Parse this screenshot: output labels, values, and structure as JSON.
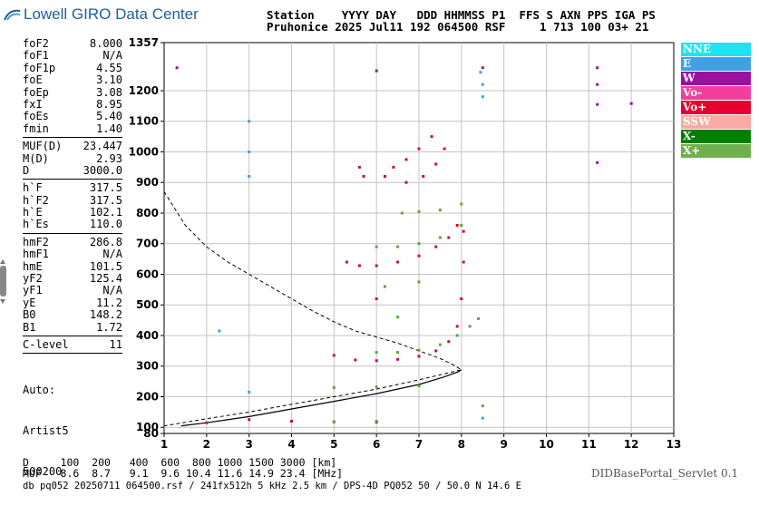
{
  "header": {
    "logo_text": "Lowell GIRO Data Center",
    "line1": "Station    YYYY DAY   DDD HHMMSS P1  FFS S AXN PPS IGA PS",
    "line2": "Pruhonice 2025 Jul11 192 064500 RSF     1 713 100 03+ 21"
  },
  "params": [
    {
      "name": "foF2",
      "value": "8.000"
    },
    {
      "name": "foF1",
      "value": "N/A"
    },
    {
      "name": "foF1p",
      "value": "4.55"
    },
    {
      "name": "foE",
      "value": "3.10"
    },
    {
      "name": "foEp",
      "value": "3.08"
    },
    {
      "name": "fxI",
      "value": "8.95"
    },
    {
      "name": "foEs",
      "value": "5.40"
    },
    {
      "name": "fmin",
      "value": "1.40"
    },
    {
      "name": "MUF(D)",
      "value": "23.447"
    },
    {
      "name": "M(D)",
      "value": "2.93"
    },
    {
      "name": "D",
      "value": "3000.0"
    },
    {
      "name": "h`F",
      "value": "317.5"
    },
    {
      "name": "h`F2",
      "value": "317.5"
    },
    {
      "name": "h`E",
      "value": "102.1"
    },
    {
      "name": "h`Es",
      "value": "110.0"
    },
    {
      "name": "hmF2",
      "value": "286.8"
    },
    {
      "name": "hmF1",
      "value": "N/A"
    },
    {
      "name": "hmE",
      "value": "101.5"
    },
    {
      "name": "yF2",
      "value": "125.4"
    },
    {
      "name": "yF1",
      "value": "N/A"
    },
    {
      "name": "yE",
      "value": "11.2"
    },
    {
      "name": "B0",
      "value": "148.2"
    },
    {
      "name": "B1",
      "value": "1.72"
    },
    {
      "name": "C-level",
      "value": "11"
    }
  ],
  "auto": {
    "line1": "Auto:",
    "line2": "Artist5",
    "line3": "500200"
  },
  "legend": [
    {
      "label": "NNE",
      "color": "#1fe3f0"
    },
    {
      "label": "E",
      "color": "#3fa0e6"
    },
    {
      "label": "W",
      "color": "#9c10a0"
    },
    {
      "label": "Vo-",
      "color": "#f23f9d"
    },
    {
      "label": "Vo+",
      "color": "#e6002f"
    },
    {
      "label": "SSW",
      "color": "#f7aaa6"
    },
    {
      "label": "X-",
      "color": "#007f00"
    },
    {
      "label": "X+",
      "color": "#6fb04f"
    }
  ],
  "footer": {
    "d_row": "D     100  200   400  600  800 1000 1500 3000 [km]",
    "muf_row": "MUF   8.6  8.7   9.1  9.6 10.4 11.6 14.9 23.4 [MHz]",
    "info": "db pq052 20250711 064500.rsf / 241fx512h 5 kHz 2.5 km / DPS-4D PQ052 50 / 50.0 N 14.6 E",
    "servlet": "DIDBasePortal_Servlet 0.1"
  },
  "chart_data": {
    "type": "scatter",
    "xlim": [
      1,
      13
    ],
    "ylim": [
      80,
      1357
    ],
    "x_ticks": [
      "1",
      "2",
      "3",
      "4",
      "5",
      "6",
      "7",
      "8",
      "9",
      "10",
      "11",
      "12",
      "13"
    ],
    "y_ticks": [
      "80",
      "100",
      "200",
      "300",
      "400",
      "500",
      "600",
      "700",
      "800",
      "900",
      "1000",
      "1100",
      "1200",
      "1357"
    ],
    "grid": true,
    "series": [
      {
        "name": "Vo+",
        "color": "#c8103a",
        "points": [
          [
            5.5,
            320
          ],
          [
            6.0,
            318
          ],
          [
            6.5,
            322
          ],
          [
            7.0,
            332
          ],
          [
            7.4,
            350
          ],
          [
            7.7,
            380
          ],
          [
            7.9,
            430
          ],
          [
            8.0,
            520
          ],
          [
            8.05,
            640
          ],
          [
            8.05,
            740
          ],
          [
            5.3,
            640
          ],
          [
            5.6,
            628
          ],
          [
            6.0,
            628
          ],
          [
            6.5,
            640
          ],
          [
            7.0,
            660
          ],
          [
            7.4,
            690
          ],
          [
            7.7,
            720
          ],
          [
            7.9,
            760
          ],
          [
            5.6,
            950
          ],
          [
            6.2,
            920
          ],
          [
            6.7,
            900
          ],
          [
            7.1,
            920
          ],
          [
            7.4,
            960
          ],
          [
            7.6,
            1010
          ],
          [
            7.3,
            1050
          ],
          [
            7.0,
            1010
          ],
          [
            6.7,
            975
          ],
          [
            6.4,
            950
          ],
          [
            5.0,
            335
          ],
          [
            6.0,
            520
          ],
          [
            5.7,
            920
          ],
          [
            2.0,
            115
          ],
          [
            3.0,
            125
          ],
          [
            4.0,
            120
          ],
          [
            5.0,
            118
          ],
          [
            6.0,
            117
          ]
        ]
      },
      {
        "name": "X+",
        "color": "#5da63a",
        "points": [
          [
            6.0,
            345
          ],
          [
            6.5,
            345
          ],
          [
            7.0,
            352
          ],
          [
            7.5,
            370
          ],
          [
            7.9,
            400
          ],
          [
            8.2,
            430
          ],
          [
            8.4,
            455
          ],
          [
            6.0,
            690
          ],
          [
            6.5,
            690
          ],
          [
            7.0,
            700
          ],
          [
            7.5,
            720
          ],
          [
            8.0,
            760
          ],
          [
            6.6,
            800
          ],
          [
            7.0,
            805
          ],
          [
            7.5,
            810
          ],
          [
            8.0,
            830
          ],
          [
            6.5,
            460
          ],
          [
            5.0,
            230
          ],
          [
            6.0,
            232
          ],
          [
            7.0,
            235
          ],
          [
            5.0,
            118
          ],
          [
            6.0,
            120
          ],
          [
            8.5,
            170
          ],
          [
            7.0,
            575
          ],
          [
            6.2,
            560
          ]
        ]
      },
      {
        "name": "E",
        "color": "#3fa0e6",
        "points": [
          [
            3.0,
            1000
          ],
          [
            3.0,
            1100
          ],
          [
            3.0,
            920
          ],
          [
            8.45,
            1260
          ],
          [
            8.5,
            1220
          ],
          [
            8.5,
            1180
          ],
          [
            8.5,
            130
          ],
          [
            3.0,
            215
          ],
          [
            2.3,
            415
          ]
        ]
      },
      {
        "name": "W",
        "color": "#9c10a0",
        "points": [
          [
            11.2,
            1275
          ],
          [
            11.2,
            1220
          ],
          [
            11.2,
            965
          ],
          [
            11.2,
            1155
          ],
          [
            12.0,
            1158
          ],
          [
            8.5,
            1275
          ],
          [
            1.3,
            1275
          ],
          [
            6.0,
            1265
          ]
        ]
      }
    ],
    "virtual_height_curve": [
      [
        1.4,
        105
      ],
      [
        2.0,
        115
      ],
      [
        3.0,
        135
      ],
      [
        4.0,
        160
      ],
      [
        5.0,
        185
      ],
      [
        6.0,
        210
      ],
      [
        7.0,
        240
      ],
      [
        7.6,
        265
      ],
      [
        7.9,
        280
      ],
      [
        8.0,
        288
      ]
    ],
    "muf_curve": [
      [
        1.0,
        870
      ],
      [
        1.5,
        760
      ],
      [
        2.0,
        690
      ],
      [
        2.5,
        640
      ],
      [
        3.0,
        600
      ],
      [
        3.5,
        560
      ],
      [
        4.0,
        520
      ],
      [
        4.5,
        480
      ],
      [
        5.0,
        445
      ],
      [
        5.5,
        415
      ],
      [
        6.0,
        395
      ],
      [
        6.5,
        375
      ],
      [
        7.0,
        350
      ],
      [
        7.5,
        325
      ],
      [
        7.8,
        305
      ],
      [
        8.0,
        288
      ],
      [
        7.0,
        255
      ],
      [
        6.0,
        225
      ],
      [
        5.0,
        200
      ],
      [
        4.0,
        175
      ],
      [
        3.0,
        150
      ],
      [
        2.0,
        128
      ],
      [
        1.0,
        105
      ]
    ]
  }
}
